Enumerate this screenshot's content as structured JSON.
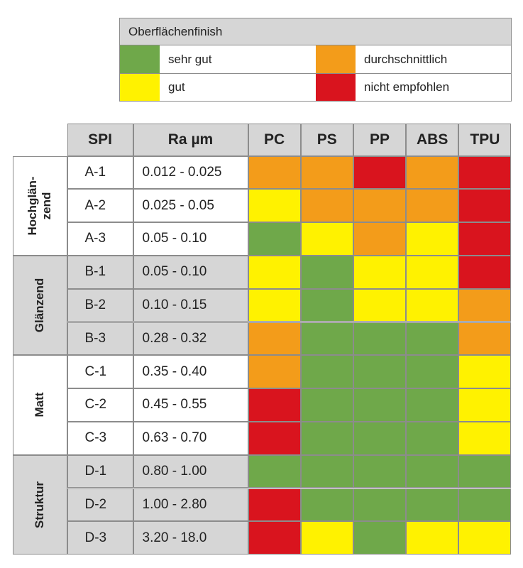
{
  "legend": {
    "title": "Oberflächenfinish",
    "items": [
      {
        "key": "sehr_gut",
        "label": "sehr gut",
        "color": "#6fa84a"
      },
      {
        "key": "durchschnittlich",
        "label": "durchschnittlich",
        "color": "#f39c1a"
      },
      {
        "key": "gut",
        "label": "gut",
        "color": "#fff200"
      },
      {
        "key": "nicht_empfohlen",
        "label": "nicht empfohlen",
        "color": "#d9141e"
      }
    ]
  },
  "chart_data": {
    "type": "heatmap",
    "columns": {
      "spi": "SPI",
      "ra": "Ra µm",
      "materials": [
        "PC",
        "PS",
        "PP",
        "ABS",
        "TPU"
      ]
    },
    "groups": [
      {
        "label_lines": [
          "Hochglän-",
          "zend"
        ],
        "rows": [
          {
            "spi": "A-1",
            "ra": "0.012 - 0.025",
            "ratings": [
              "durchschnittlich",
              "durchschnittlich",
              "nicht_empfohlen",
              "durchschnittlich",
              "nicht_empfohlen"
            ]
          },
          {
            "spi": "A-2",
            "ra": "0.025 - 0.05",
            "ratings": [
              "gut",
              "durchschnittlich",
              "durchschnittlich",
              "durchschnittlich",
              "nicht_empfohlen"
            ]
          },
          {
            "spi": "A-3",
            "ra": "0.05 - 0.10",
            "ratings": [
              "sehr_gut",
              "gut",
              "durchschnittlich",
              "gut",
              "nicht_empfohlen"
            ]
          }
        ]
      },
      {
        "label_lines": [
          "Glänzend"
        ],
        "rows": [
          {
            "spi": "B-1",
            "ra": "0.05 - 0.10",
            "ratings": [
              "gut",
              "sehr_gut",
              "gut",
              "gut",
              "nicht_empfohlen"
            ]
          },
          {
            "spi": "B-2",
            "ra": "0.10 - 0.15",
            "ratings": [
              "gut",
              "sehr_gut",
              "gut",
              "gut",
              "durchschnittlich"
            ]
          },
          {
            "spi": "B-3",
            "ra": "0.28 - 0.32",
            "ratings": [
              "durchschnittlich",
              "sehr_gut",
              "sehr_gut",
              "sehr_gut",
              "durchschnittlich"
            ]
          }
        ]
      },
      {
        "label_lines": [
          "Matt"
        ],
        "rows": [
          {
            "spi": "C-1",
            "ra": "0.35 - 0.40",
            "ratings": [
              "durchschnittlich",
              "sehr_gut",
              "sehr_gut",
              "sehr_gut",
              "gut"
            ]
          },
          {
            "spi": "C-2",
            "ra": "0.45 - 0.55",
            "ratings": [
              "nicht_empfohlen",
              "sehr_gut",
              "sehr_gut",
              "sehr_gut",
              "gut"
            ]
          },
          {
            "spi": "C-3",
            "ra": "0.63 - 0.70",
            "ratings": [
              "nicht_empfohlen",
              "sehr_gut",
              "sehr_gut",
              "sehr_gut",
              "gut"
            ]
          }
        ]
      },
      {
        "label_lines": [
          "Struktur"
        ],
        "rows": [
          {
            "spi": "D-1",
            "ra": "0.80 - 1.00",
            "ratings": [
              "sehr_gut",
              "sehr_gut",
              "sehr_gut",
              "sehr_gut",
              "sehr_gut"
            ]
          },
          {
            "spi": "D-2",
            "ra": "1.00 - 2.80",
            "ratings": [
              "nicht_empfohlen",
              "sehr_gut",
              "sehr_gut",
              "sehr_gut",
              "sehr_gut"
            ]
          },
          {
            "spi": "D-3",
            "ra": "3.20 - 18.0",
            "ratings": [
              "nicht_empfohlen",
              "gut",
              "sehr_gut",
              "gut",
              "gut"
            ]
          }
        ]
      }
    ]
  }
}
